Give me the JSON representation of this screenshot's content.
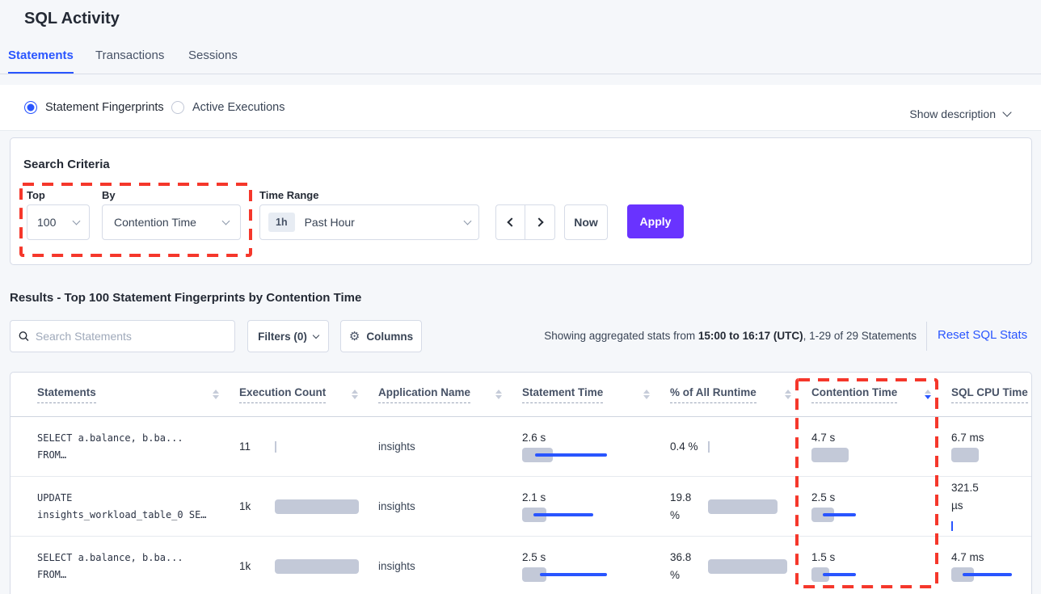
{
  "page": {
    "title": "SQL Activity"
  },
  "tabs": [
    {
      "label": "Statements",
      "active": true
    },
    {
      "label": "Transactions",
      "active": false
    },
    {
      "label": "Sessions",
      "active": false
    }
  ],
  "view_toggle": {
    "options": [
      {
        "label": "Statement Fingerprints",
        "selected": true
      },
      {
        "label": "Active Executions",
        "selected": false
      }
    ],
    "show_description_label": "Show description"
  },
  "search_criteria": {
    "title": "Search Criteria",
    "top_label": "Top",
    "top_value": "100",
    "by_label": "By",
    "by_value": "Contention Time",
    "time_range_label": "Time Range",
    "time_range_badge": "1h",
    "time_range_value": "Past Hour",
    "now_label": "Now",
    "apply_label": "Apply"
  },
  "results": {
    "heading": "Results - Top 100 Statement Fingerprints by Contention Time",
    "search_placeholder": "Search Statements",
    "filters_label": "Filters (0)",
    "columns_label": "Columns",
    "stats_prefix": "Showing aggregated stats from ",
    "stats_bold": "15:00 to 16:17 (UTC)",
    "stats_suffix": ", 1-29 of 29 Statements",
    "reset_label": "Reset SQL Stats"
  },
  "table": {
    "headers": [
      {
        "label": "Statements",
        "sorted": "none"
      },
      {
        "label": "Execution Count",
        "sorted": "none"
      },
      {
        "label": "Application Name",
        "sorted": "none"
      },
      {
        "label": "Statement Time",
        "sorted": "none"
      },
      {
        "label": "% of All Runtime",
        "sorted": "none"
      },
      {
        "label": "Contention Time",
        "sorted": "desc"
      },
      {
        "label": "SQL CPU Time",
        "sorted": "none"
      }
    ],
    "rows": [
      {
        "statement_line1": "SELECT a.balance, b.ba...",
        "statement_line2": "FROM…",
        "execution_count": "11",
        "application_name": "insights",
        "statement_time": "2.6 s",
        "pct_of_runtime": "0.4 %",
        "contention_time": "4.7 s",
        "sql_cpu_time": "6.7 ms",
        "bars": {
          "exec": {
            "sliver": "gray"
          },
          "stmt": {
            "gray": 38,
            "blue": [
              16,
              105
            ]
          },
          "pct": {
            "sliver": "gray"
          },
          "cont": {
            "gray": 46
          },
          "cpu": {
            "gray": 34
          }
        }
      },
      {
        "statement_line1": "UPDATE",
        "statement_line2": "insights_workload_table_0 SE…",
        "execution_count": "1k",
        "application_name": "insights",
        "statement_time": "2.1 s",
        "pct_of_runtime": "19.8 %",
        "contention_time": "2.5 s",
        "sql_cpu_time": "321.5 µs",
        "cpu_wrap": true,
        "bars": {
          "exec": {
            "gray": 104
          },
          "stmt": {
            "gray": 30,
            "blue": [
              14,
              88
            ]
          },
          "pct": {
            "gray": 86
          },
          "cont": {
            "gray": 28,
            "blue": [
              14,
              55
            ]
          },
          "cpu": {
            "sliver": "blue"
          }
        }
      },
      {
        "statement_line1": "SELECT a.balance, b.ba...",
        "statement_line2": "FROM…",
        "execution_count": "1k",
        "application_name": "insights",
        "statement_time": "2.5 s",
        "pct_of_runtime": "36.8 %",
        "contention_time": "1.5 s",
        "sql_cpu_time": "4.7 ms",
        "bars": {
          "exec": {
            "gray": 104
          },
          "stmt": {
            "gray": 30,
            "blue": [
              22,
              105
            ]
          },
          "pct": {
            "gray": 98
          },
          "cont": {
            "gray": 22,
            "blue": [
              14,
              55
            ]
          },
          "cpu": {
            "gray": 28,
            "blue": [
              14,
              75
            ]
          }
        }
      }
    ]
  },
  "colors": {
    "accent_blue": "#2955ff",
    "apply_purple": "#6933ff",
    "annotation_red": "#f5372b",
    "bar_gray": "#c3c9d8"
  }
}
